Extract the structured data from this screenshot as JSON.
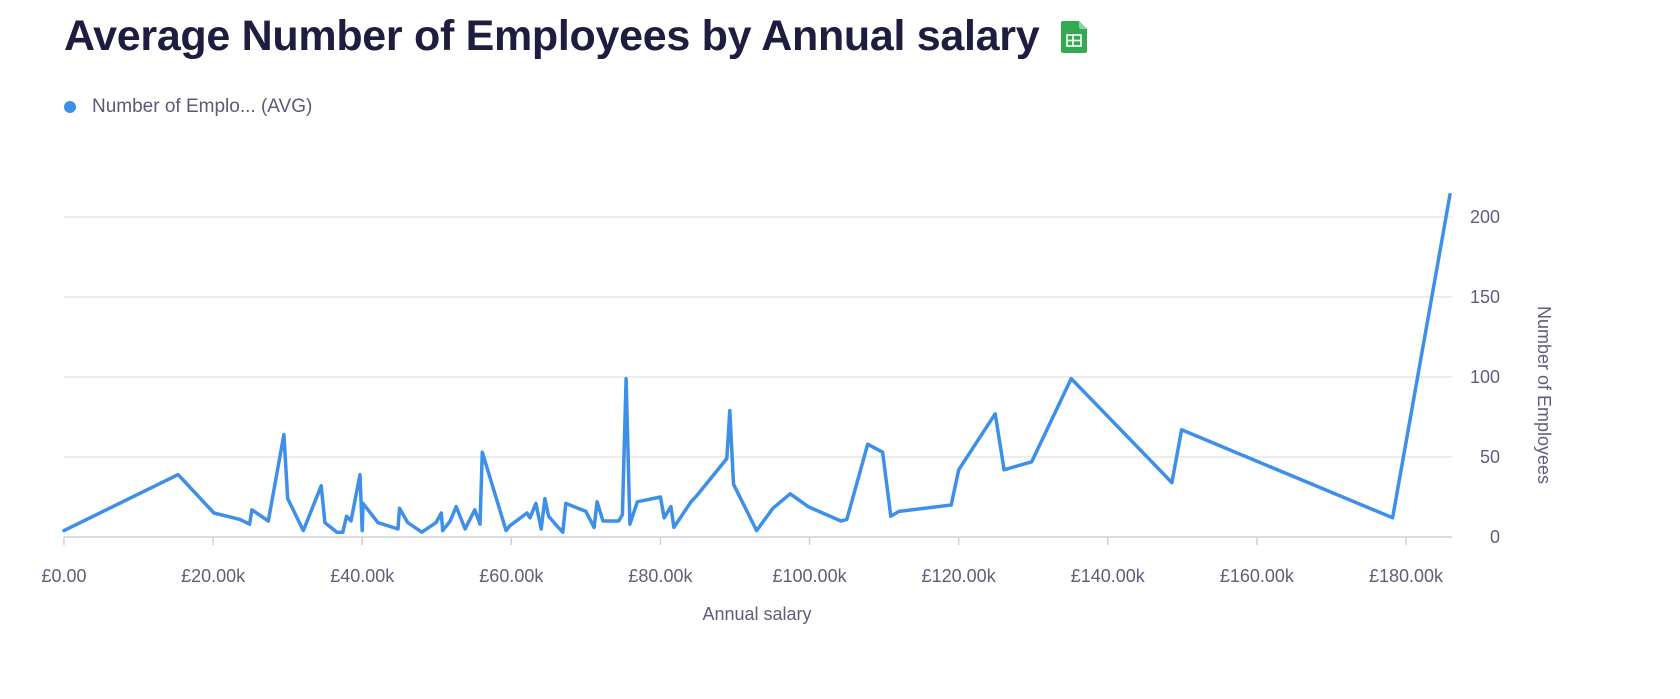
{
  "header": {
    "title": "Average Number of Employees by Annual salary",
    "icon": "spreadsheet-icon"
  },
  "colors": {
    "line": "#3d8fe8",
    "title": "#1e1c3f",
    "grid": "#e6e6ec",
    "icon": "#34a853"
  },
  "chart_data": {
    "type": "line",
    "title": "Average Number of Employees by Annual salary",
    "xlabel": "Annual salary",
    "ylabel": "Number of Employees",
    "legend": {
      "position": "top-left",
      "entries": [
        "Number of Emplo... (AVG)"
      ]
    },
    "xlim": [
      0,
      186000
    ],
    "ylim": [
      0,
      217
    ],
    "grid": true,
    "x_ticks": [
      0,
      20000,
      40000,
      60000,
      80000,
      100000,
      120000,
      140000,
      160000,
      180000
    ],
    "x_tick_labels": [
      "£0.00",
      "£20.00k",
      "£40.00k",
      "£60.00k",
      "£80.00k",
      "£100.00k",
      "£120.00k",
      "£140.00k",
      "£160.00k",
      "£180.00k"
    ],
    "y_ticks": [
      0,
      50,
      100,
      150,
      200
    ],
    "y_tick_labels": [
      "0",
      "50",
      "100",
      "150",
      "200"
    ],
    "series": [
      {
        "name": "Number of Emplo... (AVG)",
        "x": [
          0,
          15300,
          20100,
          23600,
          24900,
          25200,
          27400,
          29500,
          30000,
          32100,
          34500,
          35000,
          36600,
          37400,
          37900,
          38500,
          39700,
          40000,
          40100,
          42100,
          44800,
          45000,
          46100,
          48000,
          49900,
          50600,
          50800,
          51800,
          52600,
          53800,
          55100,
          55800,
          56100,
          59300,
          59800,
          62100,
          62500,
          63300,
          64000,
          64500,
          65000,
          66100,
          66900,
          67300,
          70000,
          71100,
          71500,
          72300,
          74400,
          74900,
          75400,
          75900,
          76900,
          80000,
          80500,
          81400,
          81800,
          84100,
          84900,
          88900,
          89300,
          89800,
          92900,
          95100,
          97400,
          99800,
          104200,
          105000,
          107800,
          109800,
          110900,
          112000,
          119000,
          120000,
          124900,
          126100,
          129800,
          135100,
          148600,
          149900,
          178200,
          185900
        ],
        "values": [
          4,
          39,
          15,
          11,
          8,
          17,
          10,
          64,
          24,
          4,
          32,
          9,
          3,
          3,
          13,
          10,
          39,
          4,
          21,
          9,
          5,
          18,
          9,
          3,
          9,
          15,
          4,
          10,
          19,
          5,
          17,
          8,
          53,
          4,
          7,
          15,
          12,
          21,
          5,
          24,
          13,
          7,
          3,
          21,
          16,
          6,
          22,
          10,
          10,
          14,
          99,
          8,
          22,
          25,
          12,
          19,
          6,
          22,
          26,
          49,
          79,
          33,
          4,
          18,
          27,
          19,
          10,
          11,
          58,
          53,
          13,
          16,
          20,
          42,
          77,
          42,
          47,
          99,
          34,
          67,
          12,
          214
        ]
      }
    ]
  }
}
